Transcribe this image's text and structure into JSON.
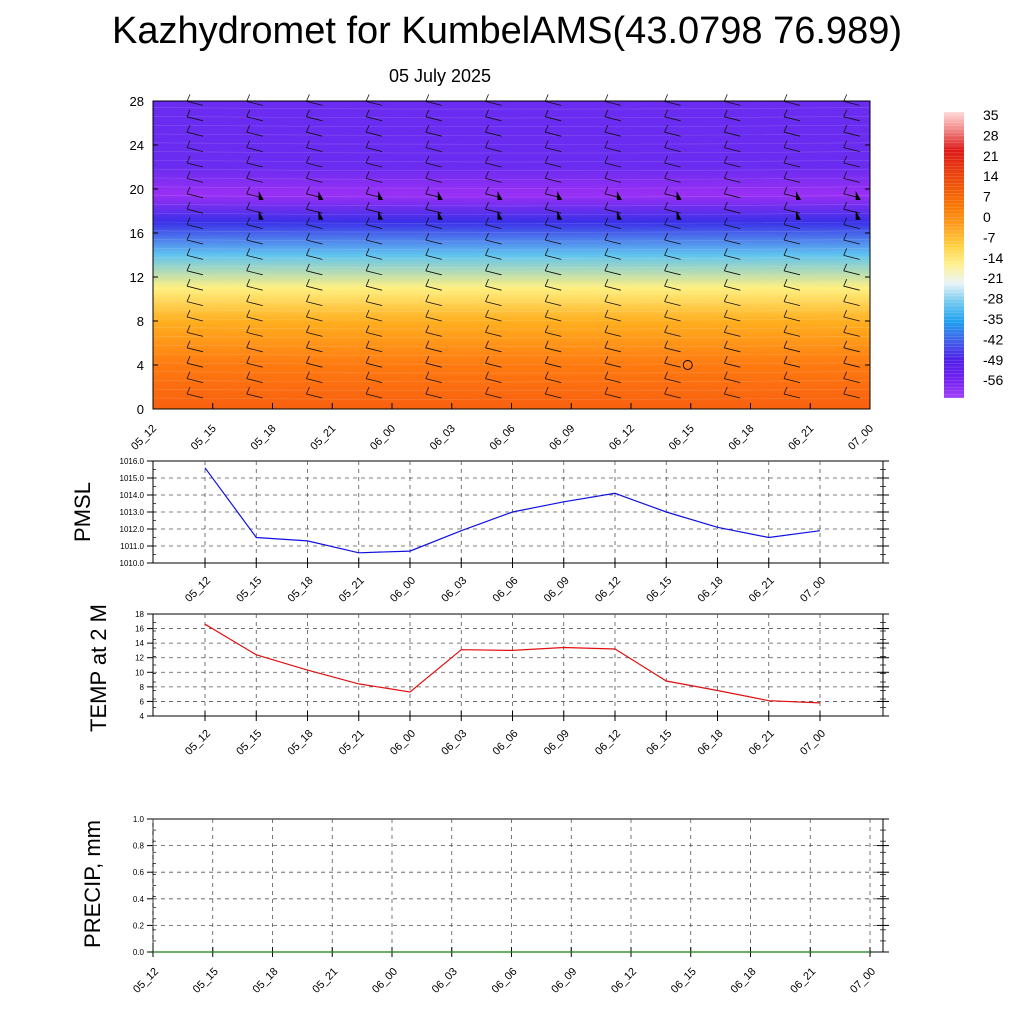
{
  "title": "Kazhydromet for KumbelAMS(43.0798 76.989)",
  "subtitle": "05 July 2025",
  "time_labels": [
    "05_12",
    "05_15",
    "05_18",
    "05_21",
    "06_00",
    "06_03",
    "06_06",
    "06_09",
    "06_12",
    "06_15",
    "06_18",
    "06_21",
    "07_00"
  ],
  "colorbar": {
    "labels": [
      "35",
      "28",
      "21",
      "14",
      "7",
      "0",
      "-7",
      "-14",
      "-21",
      "-28",
      "-35",
      "-42",
      "-49",
      "-56"
    ],
    "colors": [
      "#ffd9d9",
      "#f08080",
      "#dd1818",
      "#e83a10",
      "#f05a0a",
      "#f87a05",
      "#ffa020",
      "#ffd040",
      "#fff090",
      "#e8f4f8",
      "#70c8f0",
      "#20a0f0",
      "#4060e8",
      "#5020e8",
      "#7020f0",
      "#a040f8"
    ]
  },
  "chart_data": [
    {
      "id": "cross-section",
      "type": "heatmap",
      "ylabel": "",
      "y_ticks": [
        0,
        4,
        8,
        12,
        16,
        20,
        24,
        28
      ],
      "ylim": [
        0,
        28
      ],
      "x": [
        "05_12",
        "05_15",
        "05_18",
        "05_21",
        "06_00",
        "06_03",
        "06_06",
        "06_09",
        "06_12",
        "06_15",
        "06_18",
        "06_21",
        "07_00"
      ],
      "temperature_profile": [
        {
          "height": 0,
          "value": 21
        },
        {
          "height": 4,
          "value": 14
        },
        {
          "height": 8,
          "value": 3
        },
        {
          "height": 11,
          "value": -8
        },
        {
          "height": 14,
          "value": -24
        },
        {
          "height": 17,
          "value": -45
        },
        {
          "height": 19.5,
          "value": -56
        },
        {
          "height": 22,
          "value": -54
        },
        {
          "height": 28,
          "value": -52
        }
      ]
    },
    {
      "id": "pmsl",
      "type": "line",
      "ylabel": "PMSL",
      "y_ticks": [
        "1010.0",
        "1011.0",
        "1012.0",
        "1013.0",
        "1014.0",
        "1015.0",
        "1016.0"
      ],
      "ylim": [
        1010,
        1016
      ],
      "x": [
        "05_12",
        "05_15",
        "05_18",
        "05_21",
        "06_00",
        "06_03",
        "06_06",
        "06_09",
        "06_12",
        "06_15",
        "06_18",
        "06_21",
        "07_00"
      ],
      "series": [
        {
          "values": [
            1015.6,
            1011.5,
            1011.3,
            1010.6,
            1010.7,
            1011.9,
            1013.0,
            1013.6,
            1014.1,
            1013.0,
            1012.1,
            1011.5,
            1011.9
          ],
          "color": "#1010e0"
        }
      ]
    },
    {
      "id": "temp2m",
      "type": "line",
      "ylabel": "TEMP at 2 M",
      "y_ticks": [
        "4",
        "6",
        "8",
        "10",
        "12",
        "14",
        "16",
        "18"
      ],
      "ylim": [
        4,
        18
      ],
      "x": [
        "05_12",
        "05_15",
        "05_18",
        "05_21",
        "06_00",
        "06_03",
        "06_06",
        "06_09",
        "06_12",
        "06_15",
        "06_18",
        "06_21",
        "07_00"
      ],
      "series": [
        {
          "values": [
            16.6,
            12.4,
            10.3,
            8.4,
            7.3,
            13.1,
            13.0,
            13.4,
            13.2,
            8.8,
            7.5,
            6.1,
            5.8
          ],
          "color": "#e01010"
        }
      ]
    },
    {
      "id": "precip",
      "type": "line",
      "ylabel": "PRECIP, mm",
      "y_ticks": [
        "0.0",
        "0.2",
        "0.4",
        "0.6",
        "0.8",
        "1.0"
      ],
      "ylim": [
        0,
        1
      ],
      "x": [
        "05_12",
        "05_15",
        "05_18",
        "05_21",
        "06_00",
        "06_03",
        "06_06",
        "06_09",
        "06_12",
        "06_15",
        "06_18",
        "06_21",
        "07_00"
      ],
      "series": [
        {
          "values": [
            0,
            0,
            0,
            0,
            0,
            0,
            0,
            0,
            0,
            0,
            0,
            0,
            0
          ],
          "color": "#108010"
        }
      ]
    }
  ]
}
